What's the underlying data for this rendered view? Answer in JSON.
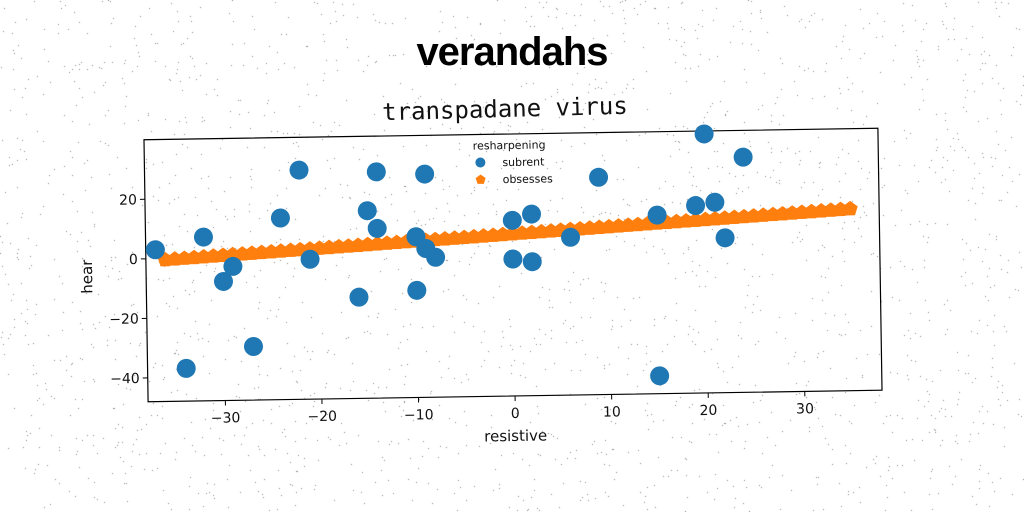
{
  "banner": {
    "title": "verandahs"
  },
  "chart_data": {
    "type": "scatter",
    "title": "transpadane virus",
    "xlabel": "resistive",
    "ylabel": "hear",
    "xlim": [
      -38,
      38
    ],
    "ylim": [
      -48,
      40
    ],
    "xticks": [
      -30,
      -20,
      -10,
      0,
      10,
      20,
      30
    ],
    "yticks": [
      -40,
      -20,
      0,
      20
    ],
    "xtick_labels": [
      "−30",
      "−20",
      "−10",
      "0",
      "10",
      "20",
      "30"
    ],
    "ytick_labels": [
      "−40",
      "−20",
      "0",
      "20"
    ],
    "grid": false,
    "legend": {
      "title": "resharpening",
      "placement": "top-center"
    },
    "series": [
      {
        "name": "subrent",
        "marker": "circle",
        "color": "#1f77b4",
        "points": [
          [
            -37,
            3
          ],
          [
            -34,
            -37
          ],
          [
            -32,
            7
          ],
          [
            -30,
            -8
          ],
          [
            -29,
            -3
          ],
          [
            -27,
            -30
          ],
          [
            -24,
            13
          ],
          [
            -22,
            29
          ],
          [
            -21,
            -1
          ],
          [
            -16,
            -14
          ],
          [
            -15,
            15
          ],
          [
            -14,
            28
          ],
          [
            -14,
            9
          ],
          [
            -10,
            6
          ],
          [
            -10,
            -12
          ],
          [
            -9,
            27
          ],
          [
            -9,
            2
          ],
          [
            -8,
            -1
          ],
          [
            0,
            -2
          ],
          [
            0,
            11
          ],
          [
            2,
            13
          ],
          [
            2,
            -3
          ],
          [
            6,
            5
          ],
          [
            9,
            25
          ],
          [
            15,
            12
          ],
          [
            15,
            -42
          ],
          [
            19,
            15
          ],
          [
            20,
            39
          ],
          [
            21,
            16
          ],
          [
            22,
            4
          ],
          [
            24,
            31
          ]
        ]
      },
      {
        "name": "obsesses",
        "marker": "pentagon",
        "color": "#ff7f0e",
        "line": {
          "x_start": -36,
          "x_end": 35,
          "slope": 0.19,
          "intercept": 6.4,
          "count": 72
        }
      }
    ]
  }
}
